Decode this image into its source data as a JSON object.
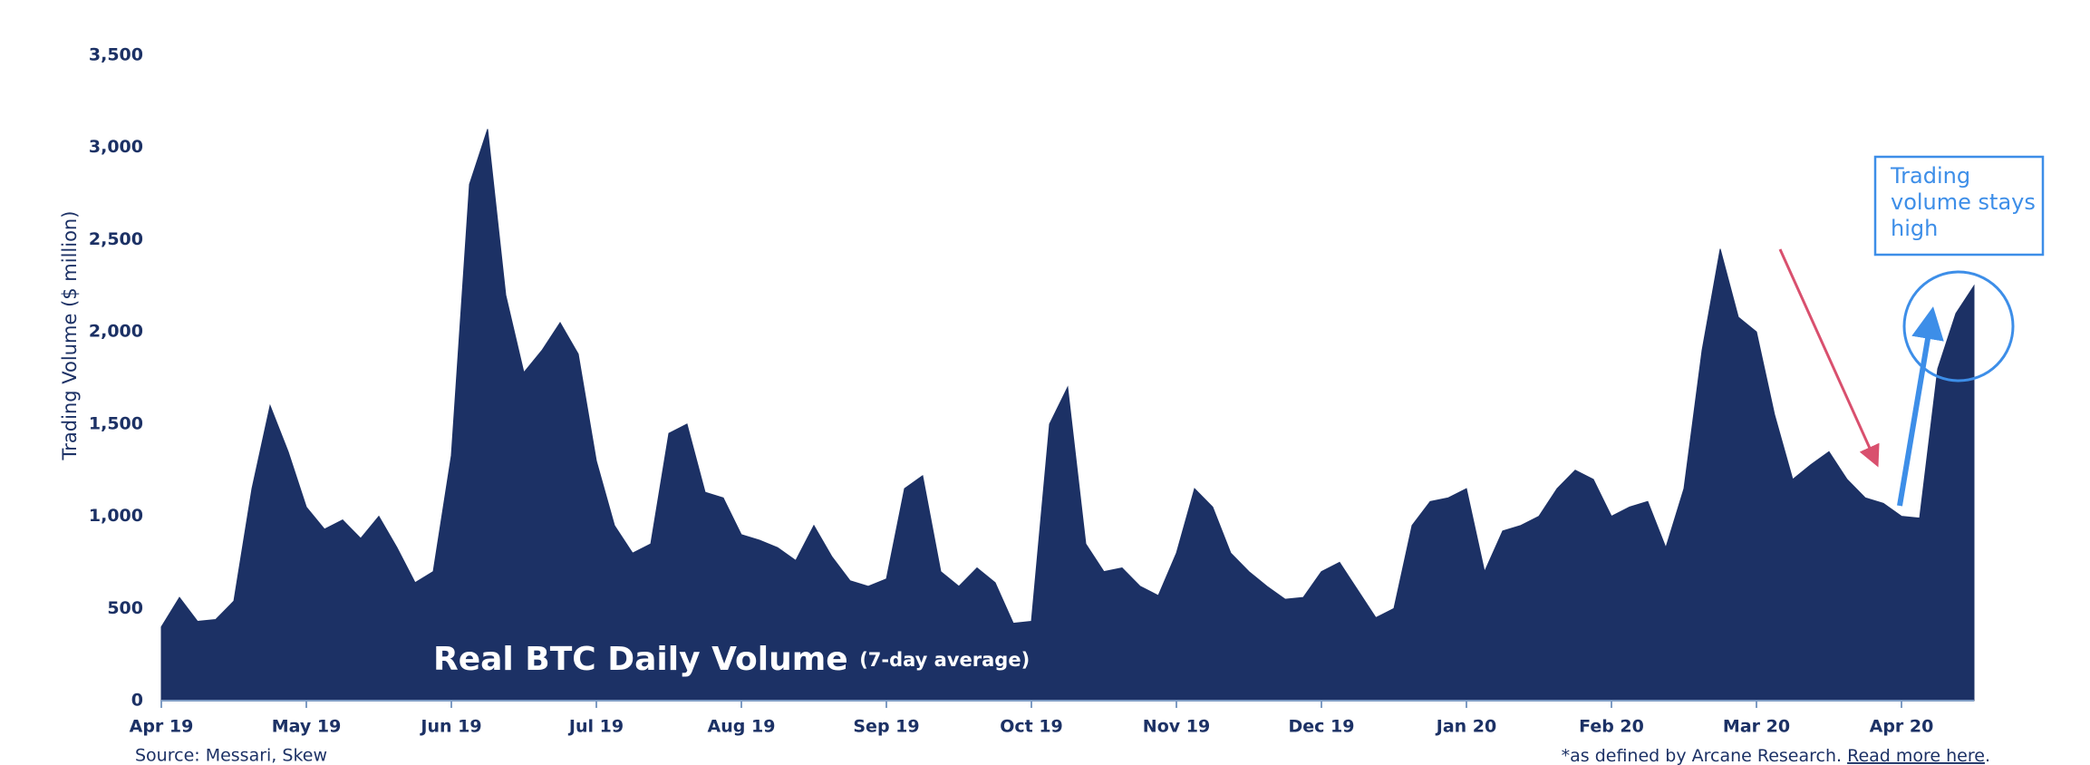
{
  "chart_data": {
    "type": "area",
    "y_label": "Trading Volume ($ million)",
    "annotation_title": "Real BTC Daily Volume",
    "annotation_subtitle": "(7-day average)",
    "callout": "Trading volume stays high",
    "source": "Source: Messari, Skew",
    "footnote": "*as defined by Arcane Research.",
    "link": "Read more here",
    "link_end": ".",
    "color": "#1c3165",
    "categories": [
      "Apr 19",
      null,
      null,
      null,
      null,
      null,
      null,
      null,
      "May 19",
      null,
      null,
      null,
      null,
      null,
      null,
      null,
      "Jun 19",
      null,
      null,
      null,
      null,
      null,
      null,
      null,
      "Jul 19",
      null,
      null,
      null,
      null,
      null,
      null,
      null,
      "Aug 19",
      null,
      null,
      null,
      null,
      null,
      null,
      null,
      "Sep 19",
      null,
      null,
      null,
      null,
      null,
      null,
      null,
      "Oct 19",
      null,
      null,
      null,
      null,
      null,
      null,
      null,
      "Nov 19",
      null,
      null,
      null,
      null,
      null,
      null,
      null,
      "Dec 19",
      null,
      null,
      null,
      null,
      null,
      null,
      null,
      "Jan 20",
      null,
      null,
      null,
      null,
      null,
      null,
      null,
      "Feb 20",
      null,
      null,
      null,
      null,
      null,
      null,
      null,
      "Mar 20",
      null,
      null,
      null,
      null,
      null,
      null,
      null,
      "Apr 20",
      null,
      null,
      null,
      null
    ],
    "values": [
      400,
      560,
      430,
      440,
      540,
      1150,
      1600,
      1350,
      1050,
      930,
      980,
      880,
      1000,
      830,
      640,
      700,
      1330,
      2800,
      3100,
      2200,
      1780,
      1900,
      2050,
      1880,
      1300,
      950,
      800,
      850,
      1450,
      1500,
      1130,
      1100,
      900,
      870,
      830,
      760,
      950,
      780,
      650,
      620,
      660,
      1150,
      1220,
      700,
      620,
      720,
      640,
      420,
      430,
      1500,
      1700,
      850,
      700,
      720,
      620,
      570,
      800,
      1150,
      1050,
      800,
      700,
      620,
      550,
      560,
      700,
      750,
      600,
      450,
      500,
      950,
      1080,
      1100,
      1150,
      700,
      920,
      950,
      1000,
      1150,
      1250,
      1200,
      1000,
      1050,
      1080,
      830,
      1150,
      1900,
      2450,
      2080,
      2000,
      1550,
      1200,
      1280,
      1350,
      1200,
      1100,
      1070,
      1000,
      990,
      1800,
      2100,
      2250
    ],
    "ylim": [
      0,
      3500
    ],
    "yticks": [
      0,
      500,
      {
        "value": 1000,
        "label": "1,000"
      },
      {
        "value": 1500,
        "label": "1,500"
      },
      {
        "value": 2000,
        "label": "2,000"
      },
      {
        "value": 2500,
        "label": "2,500"
      },
      {
        "value": 3000,
        "label": "3,000"
      },
      {
        "value": 3500,
        "label": "3,500"
      }
    ]
  }
}
